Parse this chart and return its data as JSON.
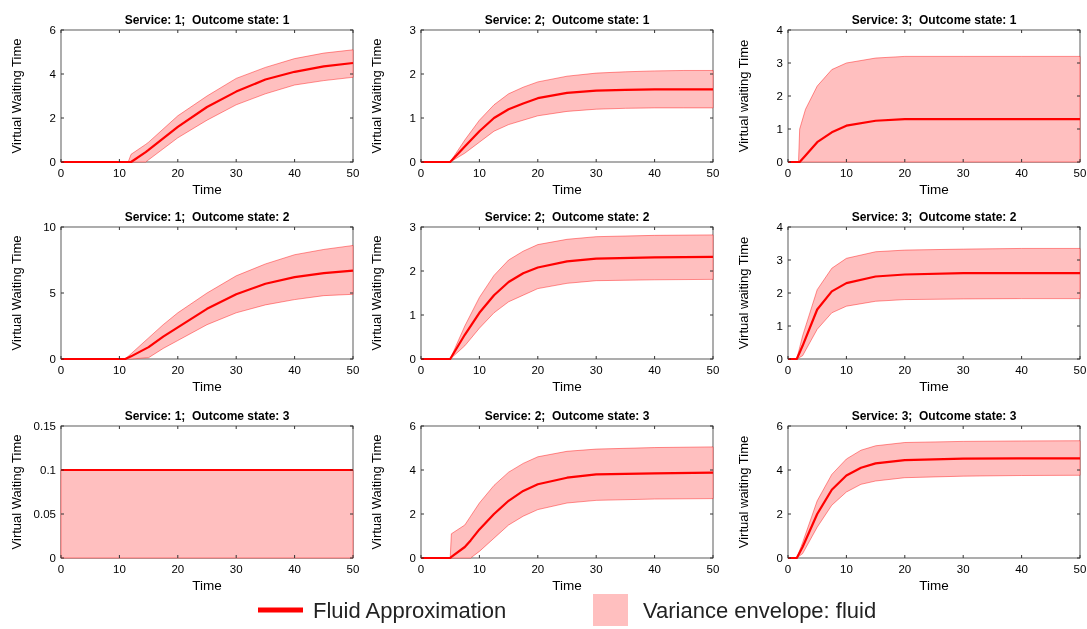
{
  "chart_data": [
    {
      "type": "line",
      "title": "Service: 1;  Outcome state: 1",
      "xlabel": "Time",
      "ylabel": "Virtual Waiting Time",
      "xlim": [
        0,
        50
      ],
      "xticks": [
        0,
        10,
        20,
        30,
        40,
        50
      ],
      "ylim": [
        0,
        6
      ],
      "yticks": [
        0,
        2,
        4,
        6
      ],
      "legend": "bottom",
      "annotations": [
        "Variance envelope: fluid"
      ],
      "x": [
        0,
        11.5,
        12,
        14.5,
        15,
        20,
        25,
        30,
        35,
        40,
        45,
        50
      ],
      "series": [
        {
          "name": "Fluid Approximation",
          "color": "#ff0000",
          "values": [
            0,
            0,
            0,
            0.45,
            0.55,
            1.6,
            2.5,
            3.2,
            3.75,
            4.1,
            4.35,
            4.5
          ],
          "lower": [
            0,
            0,
            0,
            0,
            0.1,
            1.1,
            1.9,
            2.6,
            3.1,
            3.5,
            3.7,
            3.85
          ],
          "upper": [
            0,
            0,
            0.35,
            0.8,
            0.9,
            2.1,
            3.0,
            3.8,
            4.3,
            4.7,
            4.95,
            5.1
          ]
        }
      ]
    },
    {
      "type": "line",
      "title": "Service: 2;  Outcome state: 1",
      "xlabel": "Time",
      "ylabel": "Virtual Waiting Time",
      "xlim": [
        0,
        50
      ],
      "xticks": [
        0,
        10,
        20,
        30,
        40,
        50
      ],
      "ylim": [
        0,
        3
      ],
      "yticks": [
        0,
        1,
        2,
        3
      ],
      "x": [
        0,
        5,
        7.5,
        10,
        12.5,
        15,
        17.5,
        20,
        25,
        30,
        35,
        40,
        45,
        50
      ],
      "series": [
        {
          "color": "#ff0000",
          "values": [
            0,
            0,
            0.35,
            0.7,
            1.0,
            1.2,
            1.33,
            1.45,
            1.57,
            1.62,
            1.64,
            1.65,
            1.65,
            1.65
          ],
          "lower": [
            0,
            0,
            0.2,
            0.45,
            0.7,
            0.85,
            0.95,
            1.05,
            1.15,
            1.2,
            1.22,
            1.23,
            1.23,
            1.23
          ],
          "upper": [
            0,
            0,
            0.5,
            0.95,
            1.3,
            1.55,
            1.7,
            1.82,
            1.95,
            2.02,
            2.05,
            2.07,
            2.08,
            2.08
          ]
        }
      ]
    },
    {
      "type": "line",
      "title": "Service: 3;  Outcome state: 1",
      "xlabel": "Time",
      "ylabel": "Virtual waiting Time",
      "xlim": [
        0,
        50
      ],
      "xticks": [
        0,
        10,
        20,
        30,
        40,
        50
      ],
      "ylim": [
        0,
        4
      ],
      "yticks": [
        0,
        1,
        2,
        3,
        4
      ],
      "x": [
        0,
        1.8,
        2,
        3,
        5,
        7.5,
        10,
        15,
        20,
        30,
        40,
        50
      ],
      "series": [
        {
          "color": "#ff0000",
          "values": [
            0,
            0,
            0,
            0.2,
            0.6,
            0.9,
            1.1,
            1.25,
            1.3,
            1.3,
            1.3,
            1.3
          ],
          "lower": [
            0,
            0,
            0,
            0,
            0,
            0,
            0,
            0,
            0,
            0,
            0,
            0
          ],
          "upper": [
            0,
            0,
            1.0,
            1.6,
            2.3,
            2.8,
            3.0,
            3.15,
            3.2,
            3.2,
            3.2,
            3.2
          ]
        }
      ]
    },
    {
      "type": "line",
      "title": "Service: 1;  Outcome state: 2",
      "xlabel": "Time",
      "ylabel": "Virtual Waiting Time",
      "xlim": [
        0,
        50
      ],
      "xticks": [
        0,
        10,
        20,
        30,
        40,
        50
      ],
      "ylim": [
        0,
        10
      ],
      "yticks": [
        0,
        5,
        10
      ],
      "x": [
        0,
        11,
        12,
        15,
        17.5,
        20,
        25,
        30,
        35,
        40,
        45,
        50
      ],
      "series": [
        {
          "color": "#ff0000",
          "values": [
            0,
            0,
            0.2,
            0.9,
            1.7,
            2.4,
            3.8,
            4.9,
            5.7,
            6.2,
            6.5,
            6.7
          ],
          "lower": [
            0,
            0,
            0,
            0.1,
            0.8,
            1.4,
            2.6,
            3.5,
            4.1,
            4.5,
            4.8,
            4.9
          ],
          "upper": [
            0,
            0,
            0.4,
            1.6,
            2.6,
            3.5,
            5.0,
            6.3,
            7.2,
            7.9,
            8.3,
            8.6
          ]
        }
      ]
    },
    {
      "type": "line",
      "title": "Service: 2;  Outcome state: 2",
      "xlabel": "Time",
      "ylabel": "Virtual Waiting Time",
      "xlim": [
        0,
        50
      ],
      "xticks": [
        0,
        10,
        20,
        30,
        40,
        50
      ],
      "ylim": [
        0,
        3
      ],
      "yticks": [
        0,
        1,
        2,
        3
      ],
      "x": [
        0,
        5,
        7.5,
        10,
        12.5,
        15,
        17.5,
        20,
        25,
        30,
        40,
        50
      ],
      "series": [
        {
          "color": "#ff0000",
          "values": [
            0,
            0,
            0.55,
            1.05,
            1.45,
            1.75,
            1.95,
            2.08,
            2.22,
            2.28,
            2.31,
            2.32
          ],
          "lower": [
            0,
            0,
            0.3,
            0.7,
            1.05,
            1.3,
            1.45,
            1.6,
            1.72,
            1.78,
            1.8,
            1.81
          ],
          "upper": [
            0,
            0,
            0.75,
            1.4,
            1.9,
            2.25,
            2.45,
            2.6,
            2.72,
            2.78,
            2.81,
            2.82
          ]
        }
      ]
    },
    {
      "type": "line",
      "title": "Service: 3;  Outcome state: 2",
      "xlabel": "Time",
      "ylabel": "Virtual waiting Time",
      "xlim": [
        0,
        50
      ],
      "xticks": [
        0,
        10,
        20,
        30,
        40,
        50
      ],
      "ylim": [
        0,
        4
      ],
      "yticks": [
        0,
        1,
        2,
        3,
        4
      ],
      "x": [
        0,
        1.5,
        2.5,
        5,
        7.5,
        10,
        15,
        20,
        30,
        40,
        50
      ],
      "series": [
        {
          "color": "#ff0000",
          "values": [
            0,
            0,
            0.4,
            1.5,
            2.05,
            2.3,
            2.5,
            2.56,
            2.6,
            2.6,
            2.6
          ],
          "lower": [
            0,
            0,
            0.1,
            0.9,
            1.4,
            1.6,
            1.75,
            1.8,
            1.82,
            1.83,
            1.83
          ],
          "upper": [
            0,
            0,
            0.7,
            2.1,
            2.75,
            3.05,
            3.25,
            3.3,
            3.33,
            3.35,
            3.35
          ]
        }
      ]
    },
    {
      "type": "line",
      "title": "Service: 1;  Outcome state: 3",
      "xlabel": "Time",
      "ylabel": "Virtual Waiting Time",
      "xlim": [
        0,
        50
      ],
      "xticks": [
        0,
        10,
        20,
        30,
        40,
        50
      ],
      "ylim": [
        0,
        0.15
      ],
      "yticks": [
        0,
        0.05,
        0.1,
        0.15
      ],
      "x": [
        0,
        50
      ],
      "series": [
        {
          "color": "#ff0000",
          "values": [
            0.1,
            0.1
          ],
          "lower": [
            0,
            0
          ],
          "upper": [
            0.1,
            0.1
          ]
        }
      ]
    },
    {
      "type": "line",
      "title": "Service: 2;  Outcome state: 3",
      "xlabel": "Time",
      "ylabel": "Virtual Waiting Time",
      "xlim": [
        0,
        50
      ],
      "xticks": [
        0,
        10,
        20,
        30,
        40,
        50
      ],
      "ylim": [
        0,
        6
      ],
      "yticks": [
        0,
        2,
        4,
        6
      ],
      "x": [
        0,
        5,
        5.2,
        7.5,
        8.5,
        10,
        12.5,
        15,
        17.5,
        20,
        25,
        30,
        40,
        50
      ],
      "series": [
        {
          "color": "#ff0000",
          "values": [
            0,
            0,
            0.05,
            0.5,
            0.8,
            1.3,
            2.0,
            2.6,
            3.05,
            3.35,
            3.65,
            3.8,
            3.85,
            3.88
          ],
          "lower": [
            0,
            0,
            0,
            0,
            0,
            0.3,
            0.9,
            1.5,
            1.9,
            2.2,
            2.5,
            2.62,
            2.68,
            2.7
          ],
          "upper": [
            0,
            0,
            1.1,
            1.5,
            1.9,
            2.5,
            3.3,
            3.9,
            4.3,
            4.6,
            4.85,
            4.95,
            5.02,
            5.05
          ]
        }
      ]
    },
    {
      "type": "line",
      "title": "Service: 3;  Outcome state: 3",
      "xlabel": "Time",
      "ylabel": "Virtual waiting Time",
      "xlim": [
        0,
        50
      ],
      "xticks": [
        0,
        10,
        20,
        30,
        40,
        50
      ],
      "ylim": [
        0,
        6
      ],
      "yticks": [
        0,
        2,
        4,
        6
      ],
      "x": [
        0,
        1.5,
        2.5,
        5,
        7.5,
        10,
        12.5,
        15,
        20,
        30,
        40,
        50
      ],
      "series": [
        {
          "color": "#ff0000",
          "values": [
            0,
            0,
            0.5,
            2.0,
            3.1,
            3.75,
            4.1,
            4.3,
            4.45,
            4.52,
            4.53,
            4.53
          ],
          "lower": [
            0,
            0,
            0.2,
            1.4,
            2.4,
            3.0,
            3.35,
            3.5,
            3.65,
            3.72,
            3.75,
            3.76
          ],
          "upper": [
            0,
            0,
            0.7,
            2.6,
            3.8,
            4.5,
            4.9,
            5.1,
            5.25,
            5.3,
            5.32,
            5.33
          ]
        }
      ]
    }
  ]
}
